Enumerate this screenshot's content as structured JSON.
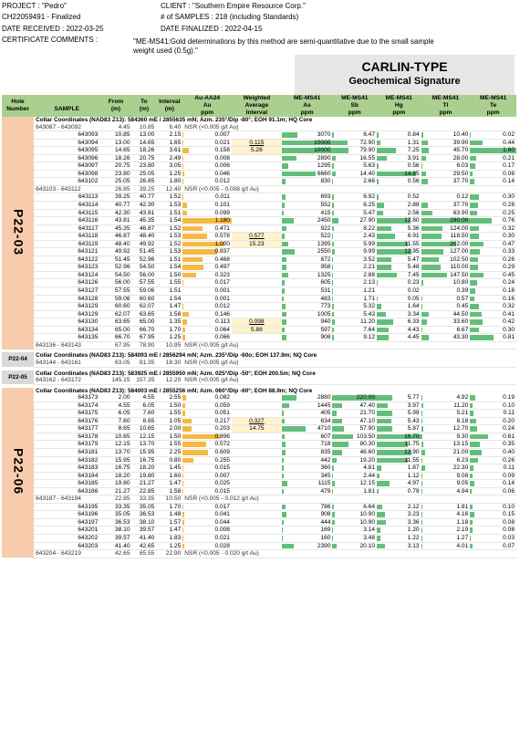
{
  "header": {
    "project": "PROJECT : \"Pedro\"",
    "cert": "CH22059491 - Finalized",
    "date_received": "DATE RECEIVED : 2022-03-25",
    "cert_comments": "CERTIFICATE COMMENTS :",
    "client": "CLIENT : \"Southern Empire Resource Corp.\"",
    "samples": "# of SAMPLES : 218 (including Standards)",
    "date_finalized": "DATE FINALIZED : 2022-04-15",
    "comment_1": "\"ME-MS41:Gold determinations by this method are semi-quantitative due to the small sample",
    "comment_2": "weight used (0.5g).\""
  },
  "signature": {
    "title": "CARLIN-TYPE",
    "subtitle": "Geochemical Signature"
  },
  "columns": {
    "hole": [
      "Hole",
      "Number"
    ],
    "sample": "SAMPLE",
    "from": [
      "From",
      "(m)"
    ],
    "to": [
      "To",
      "(m)"
    ],
    "interval": [
      "Interval",
      "(m)"
    ],
    "au": [
      "Au-AA24",
      "Au",
      "ppm"
    ],
    "wa": [
      "Weighted",
      "Average",
      "Interval"
    ],
    "as": [
      "ME-MS41",
      "As",
      "ppm"
    ],
    "sb": [
      "ME-MS41",
      "Sb",
      "ppm"
    ],
    "hg": [
      "ME-MS41",
      "Hg",
      "ppm"
    ],
    "tl": [
      "ME-MS41",
      "Tl",
      "ppm"
    ],
    "te": [
      "ME-MS41",
      "Te",
      "ppm"
    ]
  },
  "colors": {
    "au_bar": "#f4b942",
    "geo_bar": "#63be7b",
    "header_green": "#a9d08e",
    "hole_pink": "#f8cbad"
  },
  "holes": [
    {
      "name": "P22-03",
      "rows": [
        {
          "t": "c",
          "text": "Collar Coordinates (NAD83 Z13): 584360 mE / 2855635 mN; Azm. 235°/Dip -80°; EOH 91.1m; HQ Core"
        },
        {
          "t": "n",
          "s": "643087 - 643092",
          "f": "4.45",
          "to": "10.85",
          "i": "6.40",
          "text": "NSR (<0.005 g/t Au)"
        },
        {
          "t": "d",
          "s": "643093",
          "f": "10.85",
          "to": "13.00",
          "i": "2.15",
          "au": "0.007",
          "as": "3070",
          "sb": "6.47",
          "hg": "0.84",
          "tl": "10.40",
          "te": "0.02"
        },
        {
          "t": "d",
          "s": "643094",
          "f": "13.00",
          "to": "14.65",
          "i": "1.65",
          "au": "0.021",
          "w1": "0.115",
          "as": "10000",
          "sb": "72.90",
          "hg": "1.31",
          "tl": "39.90",
          "te": "0.44"
        },
        {
          "t": "d",
          "s": "643095",
          "f": "14.65",
          "to": "18.26",
          "i": "3.61",
          "au": "0.158",
          "w2": "5.26",
          "as": "10000",
          "sb": "79.90",
          "hg": "7.25",
          "tl": "45.70",
          "te": "1.60"
        },
        {
          "t": "d",
          "s": "643096",
          "f": "18.26",
          "to": "20.75",
          "i": "2.49",
          "au": "0.008",
          "as": "2890",
          "sb": "16.55",
          "hg": "3.91",
          "tl": "28.00",
          "te": "0.21"
        },
        {
          "t": "d",
          "s": "643097",
          "f": "20.75",
          "to": "23.80",
          "i": "3.05",
          "au": "0.006",
          "as": "1295",
          "sb": "5.63",
          "hg": "0.56",
          "tl": "6.03",
          "te": "0.17"
        },
        {
          "t": "d",
          "s": "643098",
          "f": "23.80",
          "to": "25.05",
          "i": "1.25",
          "au": "0.046",
          "as": "6660",
          "sb": "14.40",
          "hg": "14.85",
          "tl": "29.50",
          "te": "0.08"
        },
        {
          "t": "d",
          "s": "643102",
          "f": "25.05",
          "to": "26.85",
          "i": "1.80",
          "au": "0.012",
          "as": "830",
          "sb": "2.66",
          "hg": "0.56",
          "tl": "37.70",
          "te": "0.14"
        },
        {
          "t": "n",
          "s": "643103 - 643112",
          "f": "26.85",
          "to": "39.25",
          "i": "12.40",
          "text": "NSR (<0.005 - 0.008 g/t Au)"
        },
        {
          "t": "d",
          "s": "643113",
          "f": "39.25",
          "to": "40.77",
          "i": "1.52",
          "au": "0.011",
          "as": "693",
          "sb": "6.92",
          "hg": "0.52",
          "tl": "0.12",
          "te": "0.30"
        },
        {
          "t": "d",
          "s": "643114",
          "f": "40.77",
          "to": "42.30",
          "i": "1.53",
          "au": "0.101",
          "as": "552",
          "sb": "6.25",
          "hg": "2.88",
          "tl": "37.70",
          "te": "0.28"
        },
        {
          "t": "d",
          "s": "643115",
          "f": "42.30",
          "to": "43.81",
          "i": "1.51",
          "au": "0.099",
          "as": "415",
          "sb": "5.47",
          "hg": "2.56",
          "tl": "63.90",
          "te": "0.25"
        },
        {
          "t": "d",
          "s": "643116",
          "f": "43.81",
          "to": "45.35",
          "i": "1.54",
          "au": "1.180",
          "as": "2450",
          "sb": "27.90",
          "hg": "12.80",
          "tl": "280.00",
          "te": "0.76"
        },
        {
          "t": "d",
          "s": "643117",
          "f": "45.35",
          "to": "46.87",
          "i": "1.52",
          "au": "0.471",
          "as": "922",
          "sb": "8.22",
          "hg": "5.36",
          "tl": "124.00",
          "te": "0.32"
        },
        {
          "t": "d",
          "s": "643118",
          "f": "46.87",
          "to": "48.40",
          "i": "1.53",
          "au": "0.578",
          "w1": "0.577",
          "as": "522",
          "sb": "2.43",
          "hg": "6.91",
          "tl": "118.50",
          "te": "0.30"
        },
        {
          "t": "d",
          "s": "643119",
          "f": "48.40",
          "to": "49.92",
          "i": "1.52",
          "au": "1.000",
          "w2": "15.23",
          "as": "1395",
          "sb": "5.99",
          "hg": "11.55",
          "tl": "202.00",
          "te": "0.47"
        },
        {
          "t": "d",
          "s": "643121",
          "f": "49.92",
          "to": "51.45",
          "i": "1.53",
          "au": "0.837",
          "as": "2550",
          "sb": "9.99",
          "hg": "12.95",
          "tl": "127.00",
          "te": "0.33"
        },
        {
          "t": "d",
          "s": "643122",
          "f": "51.45",
          "to": "52.96",
          "i": "1.51",
          "au": "0.468",
          "as": "872",
          "sb": "3.52",
          "hg": "5.47",
          "tl": "102.50",
          "te": "0.26"
        },
        {
          "t": "d",
          "s": "643123",
          "f": "52.96",
          "to": "54.50",
          "i": "1.54",
          "au": "0.497",
          "as": "958",
          "sb": "2.21",
          "hg": "5.48",
          "tl": "110.00",
          "te": "0.29"
        },
        {
          "t": "d",
          "s": "643124",
          "f": "54.50",
          "to": "56.00",
          "i": "1.50",
          "au": "0.323",
          "as": "1325",
          "sb": "2.88",
          "hg": "7.45",
          "tl": "147.50",
          "te": "0.45"
        },
        {
          "t": "d",
          "s": "643126",
          "f": "56.00",
          "to": "57.55",
          "i": "1.55",
          "au": "0.017",
          "as": "605",
          "sb": "2.13",
          "hg": "0.23",
          "tl": "10.80",
          "te": "0.24"
        },
        {
          "t": "d",
          "s": "643127",
          "f": "57.55",
          "to": "59.06",
          "i": "1.51",
          "au": "0.001",
          "as": "531",
          "sb": "1.21",
          "hg": "0.02",
          "tl": "0.39",
          "te": "0.18"
        },
        {
          "t": "d",
          "s": "643128",
          "f": "59.06",
          "to": "60.60",
          "i": "1.54",
          "au": "0.001",
          "as": "483",
          "sb": "1.71",
          "hg": "0.05",
          "tl": "0.57",
          "te": "0.16"
        },
        {
          "t": "d",
          "s": "643129",
          "f": "60.60",
          "to": "62.07",
          "i": "1.47",
          "au": "0.012",
          "as": "773",
          "sb": "5.32",
          "hg": "1.64",
          "tl": "0.45",
          "te": "0.32"
        },
        {
          "t": "d",
          "s": "643129",
          "f": "62.07",
          "to": "63.65",
          "i": "1.58",
          "au": "0.146",
          "as": "1005",
          "sb": "5.43",
          "hg": "3.34",
          "tl": "44.50",
          "te": "0.41"
        },
        {
          "t": "d",
          "s": "643130",
          "f": "63.65",
          "to": "65.00",
          "i": "1.35",
          "au": "0.113",
          "w1": "0.098",
          "as": "940",
          "sb": "11.20",
          "hg": "6.33",
          "tl": "33.60",
          "te": "0.42"
        },
        {
          "t": "d",
          "s": "643134",
          "f": "65.00",
          "to": "66.70",
          "i": "1.70",
          "au": "0.064",
          "w2": "5.88",
          "as": "597",
          "sb": "7.64",
          "hg": "4.43",
          "tl": "6.67",
          "te": "0.30"
        },
        {
          "t": "d",
          "s": "643135",
          "f": "66.70",
          "to": "67.95",
          "i": "1.25",
          "au": "0.066",
          "as": "908",
          "sb": "9.12",
          "hg": "4.45",
          "tl": "43.30",
          "te": "0.81"
        },
        {
          "t": "n",
          "s": "643136 - 643143",
          "f": "67.95",
          "to": "78.90",
          "i": "10.95",
          "text": "NSR (<0.005 g/t Au)"
        }
      ]
    },
    {
      "name": "P22-04",
      "rows": [
        {
          "t": "c",
          "text": "Collar Coordinates (NAD83 Z13): 584093 mE / 2856294 mN; Azm. 235°/Dip -60o; EOH 137.9m; NQ Core"
        },
        {
          "t": "n",
          "s": "643144 - 643161",
          "f": "63.05",
          "to": "81.35",
          "i": "18.30",
          "text": "NSR (<0.005 g/t Au)"
        }
      ]
    },
    {
      "name": "P22-05",
      "rows": [
        {
          "t": "c",
          "text": "Collar Coordinates (NAD83 Z13): 583925 mE / 2855950 mN; Azm. 025°/Dip -50°; EOH 200.5m; NQ Core"
        },
        {
          "t": "n",
          "s": "643162 - 643172",
          "f": "145.15",
          "to": "157.35",
          "i": "12.20",
          "text": "NSR (<0.005 g/t Au)"
        }
      ]
    },
    {
      "name": "P22-06",
      "rows": [
        {
          "t": "c",
          "text": "Collar Coordinates (NAD83 Z13): 584003 mE / 2855256 mN; Azm. 060°/Dip -60°; EOH 88.9m; NQ Core"
        },
        {
          "t": "d",
          "s": "643173",
          "f": "2.00",
          "to": "4.55",
          "i": "2.55",
          "au": "0.082",
          "as": "2880",
          "sb": "220.00",
          "hg": "5.77",
          "tl": "4.92",
          "te": "0.19"
        },
        {
          "t": "d",
          "s": "643174",
          "f": "4.55",
          "to": "6.05",
          "i": "1.50",
          "au": "0.059",
          "as": "1445",
          "sb": "47.40",
          "hg": "3.97",
          "tl": "11.20",
          "te": "0.10"
        },
        {
          "t": "d",
          "s": "643175",
          "f": "6.05",
          "to": "7.60",
          "i": "1.55",
          "au": "0.051",
          "as": "405",
          "sb": "21.70",
          "hg": "5.99",
          "tl": "5.21",
          "te": "0.11"
        },
        {
          "t": "d",
          "s": "643176",
          "f": "7.60",
          "to": "8.65",
          "i": "1.05",
          "au": "0.217",
          "w1": "0.327",
          "as": "634",
          "sb": "47.10",
          "hg": "5.43",
          "tl": "8.18",
          "te": "0.20"
        },
        {
          "t": "d",
          "s": "643177",
          "f": "8.65",
          "to": "10.65",
          "i": "2.00",
          "au": "0.203",
          "w2": "14.75",
          "as": "4710",
          "sb": "57.90",
          "hg": "5.87",
          "tl": "12.70",
          "te": "0.24"
        },
        {
          "t": "d",
          "s": "643178",
          "f": "10.65",
          "to": "12.15",
          "i": "1.50",
          "au": "0.896",
          "as": "607",
          "sb": "103.50",
          "hg": "16.70",
          "tl": "9.30",
          "te": "0.61"
        },
        {
          "t": "d",
          "s": "643179",
          "f": "12.15",
          "to": "13.70",
          "i": "1.55",
          "au": "0.572",
          "as": "718",
          "sb": "80.30",
          "hg": "11.75",
          "tl": "13.15",
          "te": "0.35"
        },
        {
          "t": "d",
          "s": "643181",
          "f": "13.70",
          "to": "15.95",
          "i": "2.25",
          "au": "0.609",
          "as": "835",
          "sb": "46.60",
          "hg": "12.90",
          "tl": "21.00",
          "te": "0.40"
        },
        {
          "t": "d",
          "s": "643182",
          "f": "15.95",
          "to": "16.75",
          "i": "0.80",
          "au": "0.255",
          "as": "442",
          "sb": "19.20",
          "hg": "11.55",
          "tl": "6.23",
          "te": "0.26"
        },
        {
          "t": "d",
          "s": "643183",
          "f": "16.75",
          "to": "18.20",
          "i": "1.45",
          "au": "0.015",
          "as": "360",
          "sb": "4.81",
          "hg": "1.87",
          "tl": "22.30",
          "te": "0.11"
        },
        {
          "t": "d",
          "s": "643184",
          "f": "18.20",
          "to": "19.80",
          "i": "1.60",
          "au": "0.007",
          "as": "345",
          "sb": "2.44",
          "hg": "1.12",
          "tl": "9.08",
          "te": "0.09"
        },
        {
          "t": "d",
          "s": "643185",
          "f": "19.80",
          "to": "21.27",
          "i": "1.47",
          "au": "0.025",
          "as": "1115",
          "sb": "12.15",
          "hg": "4.97",
          "tl": "9.05",
          "te": "0.14"
        },
        {
          "t": "d",
          "s": "643186",
          "f": "21.27",
          "to": "22.85",
          "i": "1.58",
          "au": "0.015",
          "as": "479",
          "sb": "1.81",
          "hg": "0.79",
          "tl": "4.94",
          "te": "0.06"
        },
        {
          "t": "n",
          "s": "643187 - 643194",
          "f": "22.85",
          "to": "33.35",
          "i": "10.50",
          "text": "NSR (<0.005 - 0.012 g/t Au)"
        },
        {
          "t": "d",
          "s": "643195",
          "f": "33.35",
          "to": "35.05",
          "i": "1.70",
          "au": "0.017",
          "as": "786",
          "sb": "6.64",
          "hg": "2.12",
          "tl": "1.81",
          "te": "0.10"
        },
        {
          "t": "d",
          "s": "643196",
          "f": "35.05",
          "to": "36.53",
          "i": "1.48",
          "au": "0.041",
          "as": "908",
          "sb": "10.90",
          "hg": "3.23",
          "tl": "4.16",
          "te": "0.15"
        },
        {
          "t": "d",
          "s": "643197",
          "f": "36.53",
          "to": "38.10",
          "i": "1.57",
          "au": "0.044",
          "as": "444",
          "sb": "10.90",
          "hg": "3.36",
          "tl": "1.18",
          "te": "0.08"
        },
        {
          "t": "d",
          "s": "643201",
          "f": "38.10",
          "to": "39.57",
          "i": "1.47",
          "au": "0.008",
          "as": "169",
          "sb": "3.14",
          "hg": "1.20",
          "tl": "2.19",
          "te": "0.08"
        },
        {
          "t": "d",
          "s": "643202",
          "f": "39.57",
          "to": "41.40",
          "i": "1.83",
          "au": "0.021",
          "as": "160",
          "sb": "3.48",
          "hg": "1.22",
          "tl": "1.27",
          "te": "0.03"
        },
        {
          "t": "d",
          "s": "643203",
          "f": "41.40",
          "to": "42.65",
          "i": "1.25",
          "au": "0.028",
          "as": "2390",
          "sb": "20.10",
          "hg": "3.13",
          "tl": "4.01",
          "te": "0.07"
        },
        {
          "t": "n",
          "s": "643204 - 643219",
          "f": "42.65",
          "to": "65.55",
          "i": "22.90",
          "text": "NSR (<0.005 - 0.020 g/t Au)"
        }
      ]
    }
  ]
}
